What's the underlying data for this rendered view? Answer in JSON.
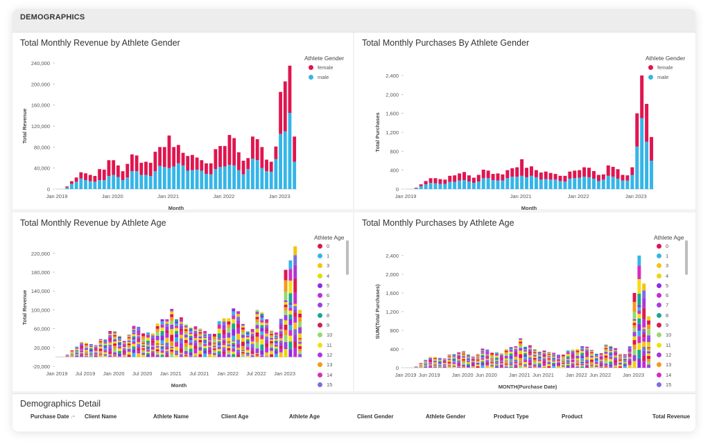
{
  "section": {
    "title": "DEMOGRAPHICS"
  },
  "panels": {
    "rev_gender": {
      "title": "Total Monthly Revenue by Athlete Gender",
      "legend_title": "Athlete Gender"
    },
    "pur_gender": {
      "title": "Total Monthly Purchases By Athlete Gender",
      "legend_title": "Athlete Gender"
    },
    "rev_age": {
      "title": "Total Monthly Revenue by Athlete Age",
      "legend_title": "Athlete Age"
    },
    "pur_age": {
      "title": "Total Monthly Purchases by Athlete Age",
      "legend_title": "Athlete Age"
    }
  },
  "gender_legend": [
    {
      "label": "female",
      "color": "#e0154f"
    },
    {
      "label": "male",
      "color": "#35b5e8"
    }
  ],
  "age_legend": [
    {
      "label": "0",
      "color": "#e0154f"
    },
    {
      "label": "1",
      "color": "#35b5e8"
    },
    {
      "label": "3",
      "color": "#f5c20f"
    },
    {
      "label": "4",
      "color": "#e8d60c"
    },
    {
      "label": "5",
      "color": "#8f2be0"
    },
    {
      "label": "6",
      "color": "#c42bd8"
    },
    {
      "label": "7",
      "color": "#9e3fe8"
    },
    {
      "label": "8",
      "color": "#17a88f"
    },
    {
      "label": "9",
      "color": "#d91e4c"
    },
    {
      "label": "10",
      "color": "#98d86e"
    },
    {
      "label": "11",
      "color": "#f2de14"
    },
    {
      "label": "12",
      "color": "#a838d8"
    },
    {
      "label": "13",
      "color": "#f59a16"
    },
    {
      "label": "14",
      "color": "#d62dbd"
    },
    {
      "label": "15",
      "color": "#7a6ee0"
    }
  ],
  "chart_data": [
    {
      "type": "bar",
      "title": "Total Monthly Revenue by Athlete Gender",
      "xlabel": "Month",
      "ylabel": "Total Revenue",
      "ylim": [
        0,
        240000
      ],
      "yticks": [
        "0",
        "40,000",
        "80,000",
        "120,000",
        "160,000",
        "200,000",
        "240,000"
      ],
      "xticks": [
        "Jan 2019",
        "Jan 2020",
        "Jan 2021",
        "Jan 2022",
        "Jan 2023"
      ],
      "x_start": "2019-01",
      "stacked": true,
      "series": [
        {
          "name": "male",
          "values": [
            0,
            0,
            3000,
            10000,
            14000,
            20000,
            17000,
            15000,
            14000,
            17000,
            17000,
            25000,
            27000,
            23000,
            17000,
            22000,
            34000,
            34000,
            27000,
            27000,
            25000,
            34000,
            44000,
            42000,
            40000,
            43000,
            49000,
            45000,
            35000,
            36000,
            37000,
            35000,
            29000,
            28000,
            38000,
            42000,
            43000,
            46000,
            45000,
            36000,
            28000,
            38000,
            58000,
            55000,
            40000,
            34000,
            33000,
            57000,
            105000,
            110000,
            145000,
            52000
          ]
        },
        {
          "name": "female",
          "values": [
            0,
            0,
            2000,
            5000,
            8000,
            12000,
            13000,
            12000,
            11000,
            21000,
            20000,
            30000,
            28000,
            22000,
            17000,
            26000,
            32000,
            30000,
            23000,
            25000,
            25000,
            37000,
            36000,
            38000,
            62000,
            37000,
            35000,
            24000,
            28000,
            29000,
            23000,
            20000,
            20000,
            21000,
            38000,
            40000,
            39000,
            57000,
            52000,
            34000,
            26000,
            21000,
            42000,
            40000,
            40000,
            22000,
            19000,
            24000,
            80000,
            95000,
            90000,
            48000
          ]
        }
      ]
    },
    {
      "type": "bar",
      "title": "Total Monthly Purchases By Athlete Gender",
      "xlabel": "Month",
      "ylabel": "Total Purchases",
      "ylim": [
        0,
        2400
      ],
      "yticks": [
        "0",
        "400",
        "800",
        "1,200",
        "1,600",
        "2,000",
        "2,400"
      ],
      "xticks": [
        "Jan 2019",
        "Jan 2021",
        "Jan 2022",
        "Jan 2023"
      ],
      "x_start": "2019-01",
      "stacked": true,
      "series": [
        {
          "name": "male",
          "values": [
            0,
            0,
            20,
            60,
            100,
            130,
            120,
            110,
            110,
            150,
            150,
            180,
            190,
            160,
            130,
            160,
            230,
            230,
            190,
            180,
            180,
            230,
            260,
            260,
            280,
            250,
            280,
            250,
            200,
            210,
            200,
            200,
            170,
            160,
            220,
            230,
            240,
            260,
            250,
            220,
            170,
            200,
            280,
            260,
            220,
            180,
            180,
            300,
            900,
            1500,
            1000,
            600
          ]
        },
        {
          "name": "female",
          "values": [
            0,
            0,
            10,
            40,
            70,
            100,
            110,
            100,
            90,
            130,
            140,
            150,
            170,
            130,
            110,
            140,
            180,
            160,
            130,
            150,
            130,
            170,
            180,
            200,
            350,
            200,
            200,
            150,
            150,
            160,
            140,
            120,
            110,
            120,
            150,
            160,
            160,
            200,
            200,
            160,
            130,
            110,
            220,
            210,
            200,
            120,
            110,
            160,
            700,
            900,
            800,
            500
          ]
        }
      ]
    },
    {
      "type": "bar",
      "title": "Total Monthly Revenue by Athlete Age",
      "xlabel": "Month",
      "ylabel": "Total Revenue",
      "ylim": [
        -20000,
        230000
      ],
      "yticks": [
        "-20,000",
        "20,000",
        "60,000",
        "100,000",
        "140,000",
        "180,000",
        "220,000"
      ],
      "xticks": [
        "Jan 2019",
        "Jul 2019",
        "Jan 2020",
        "Jul 2020",
        "Jan 2021",
        "Jul 2021",
        "Jan 2022",
        "Jul 2022",
        "Jan 2023"
      ],
      "x_start": "2019-01",
      "stacked": true,
      "totals": [
        0,
        0,
        5000,
        14000,
        22000,
        32000,
        30000,
        27000,
        25000,
        38000,
        37000,
        55000,
        55000,
        45000,
        34000,
        48000,
        66000,
        64000,
        50000,
        52000,
        50000,
        71000,
        80000,
        80000,
        102000,
        80000,
        84000,
        69000,
        63000,
        65000,
        60000,
        55000,
        49000,
        49000,
        76000,
        82000,
        82000,
        103000,
        97000,
        70000,
        54000,
        59000,
        100000,
        95000,
        80000,
        56000,
        52000,
        81000,
        185000,
        205000,
        235000,
        100000
      ]
    },
    {
      "type": "bar",
      "title": "Total Monthly Purchases by Athlete Age",
      "xlabel": "MONTH(Purchase Date)",
      "ylabel": "SUM(Total Purchases)",
      "ylim": [
        0,
        2400
      ],
      "yticks": [
        "0",
        "400",
        "800",
        "1,200",
        "1,600",
        "2,000",
        "2,400"
      ],
      "xticks": [
        "Jan 2019",
        "Jun 2019",
        "Jan 2020",
        "Jun 2020",
        "Jan 2021",
        "Jun 2021",
        "Jan 2022",
        "Jun 2022",
        "Jan 2023"
      ],
      "x_start": "2019-01",
      "stacked": true,
      "totals": [
        0,
        0,
        30,
        100,
        170,
        230,
        230,
        210,
        200,
        280,
        290,
        330,
        360,
        290,
        240,
        300,
        410,
        390,
        320,
        330,
        310,
        400,
        440,
        460,
        630,
        450,
        480,
        400,
        350,
        370,
        340,
        320,
        280,
        280,
        370,
        390,
        400,
        460,
        450,
        380,
        300,
        310,
        500,
        470,
        420,
        300,
        290,
        460,
        1600,
        2400,
        1800,
        1100
      ]
    }
  ],
  "detail": {
    "title": "Demographics Detail",
    "columns": [
      "Purchase Date",
      "Client Name",
      "Athlete Name",
      "Client Age",
      "Athlete Age",
      "Client Gender",
      "Athlete Gender",
      "Product Type",
      "Product",
      "Total Revenue"
    ]
  }
}
